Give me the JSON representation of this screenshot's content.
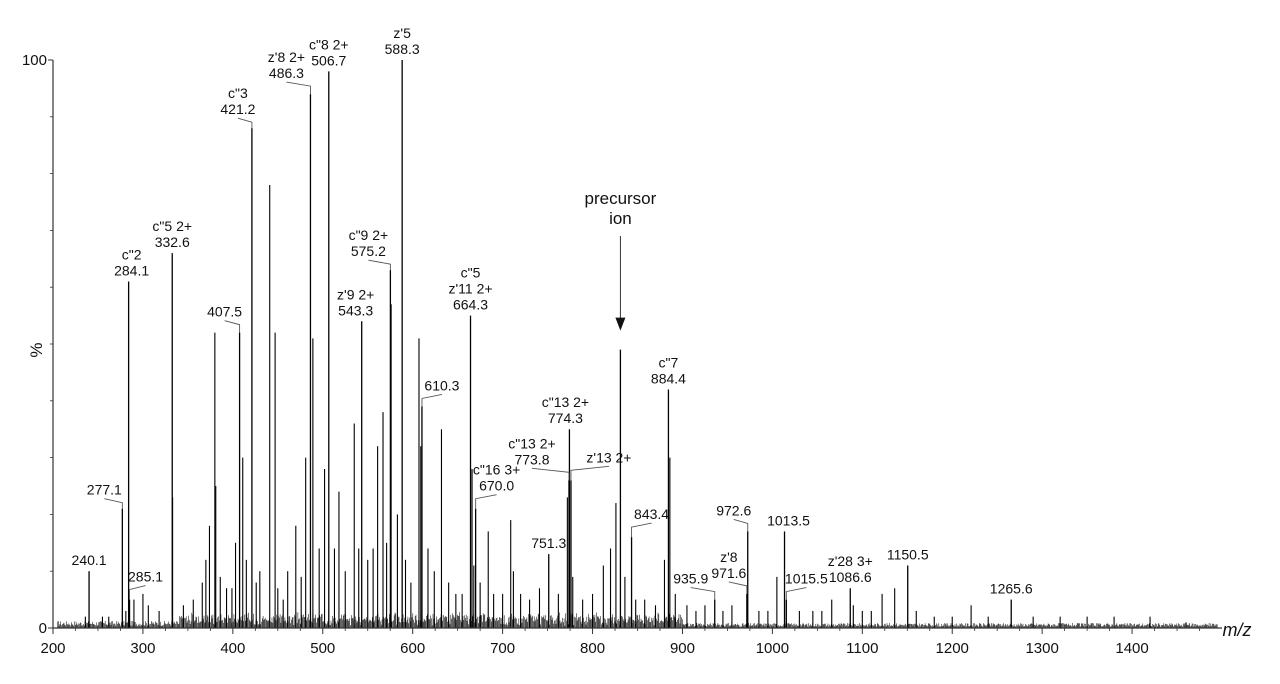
{
  "chart_data": {
    "type": "bar",
    "title": "",
    "xlabel": "m/z",
    "ylabel": "%",
    "xlim": [
      200,
      1500
    ],
    "ylim": [
      0,
      100
    ],
    "x_ticks": [
      "200",
      "300",
      "400",
      "500",
      "600",
      "700",
      "800",
      "900",
      "1000",
      "1100",
      "1200",
      "1300",
      "1400"
    ],
    "y_ticks": [
      "0",
      "100"
    ],
    "grid": false,
    "legend": "none",
    "colors": {
      "peak": "#000000",
      "axis": "#333333",
      "label_line": "#555555"
    },
    "labeled_peaks": [
      {
        "mz": 240.1,
        "intensity": 10,
        "label_lines": [
          "240.1"
        ]
      },
      {
        "mz": 277.1,
        "intensity": 21,
        "label_lines": [
          "277.1"
        ]
      },
      {
        "mz": 284.1,
        "intensity": 61,
        "label_lines": [
          "c\"2",
          "284.1"
        ]
      },
      {
        "mz": 285.1,
        "intensity": 5,
        "label_lines": [
          "285.1"
        ]
      },
      {
        "mz": 332.6,
        "intensity": 66,
        "label_lines": [
          "c\"5 2+",
          "332.6"
        ]
      },
      {
        "mz": 407.5,
        "intensity": 52,
        "label_lines": [
          "407.5"
        ]
      },
      {
        "mz": 421.2,
        "intensity": 88,
        "label_lines": [
          "c\"3",
          "421.2"
        ]
      },
      {
        "mz": 486.3,
        "intensity": 94,
        "label_lines": [
          "z'8 2+",
          "486.3"
        ]
      },
      {
        "mz": 506.7,
        "intensity": 98,
        "label_lines": [
          "c\"8 2+",
          "506.7"
        ]
      },
      {
        "mz": 543.3,
        "intensity": 54,
        "label_lines": [
          "z'9 2+",
          "543.3"
        ]
      },
      {
        "mz": 575.2,
        "intensity": 63,
        "label_lines": [
          "c\"9 2+",
          "575.2"
        ]
      },
      {
        "mz": 588.3,
        "intensity": 100,
        "label_lines": [
          "z'5",
          "588.3"
        ]
      },
      {
        "mz": 610.3,
        "intensity": 39,
        "label_lines": [
          "610.3"
        ]
      },
      {
        "mz": 664.3,
        "intensity": 55,
        "label_lines": [
          "c\"5",
          "z'11 2+",
          "664.3"
        ]
      },
      {
        "mz": 670.0,
        "intensity": 21,
        "label_lines": [
          "c\"16 3+",
          "670.0"
        ]
      },
      {
        "mz": 751.3,
        "intensity": 13,
        "label_lines": [
          "751.3"
        ]
      },
      {
        "mz": 773.8,
        "intensity": 26,
        "label_lines": [
          "c\"13 2+",
          "773.8"
        ]
      },
      {
        "mz": 774.3,
        "intensity": 35,
        "label_lines": [
          "c\"13 2+",
          "774.3"
        ]
      },
      {
        "mz": 776.0,
        "intensity": 26,
        "label_lines": [
          "z'13 2+"
        ]
      },
      {
        "mz": 831.0,
        "intensity": 49,
        "label_lines": []
      },
      {
        "mz": 843.4,
        "intensity": 16,
        "label_lines": [
          "843.4"
        ]
      },
      {
        "mz": 884.4,
        "intensity": 42,
        "label_lines": [
          "c\"7",
          "884.4"
        ]
      },
      {
        "mz": 935.9,
        "intensity": 5,
        "label_lines": [
          "935.9"
        ]
      },
      {
        "mz": 971.6,
        "intensity": 6,
        "label_lines": [
          "z'8",
          "971.6"
        ]
      },
      {
        "mz": 972.6,
        "intensity": 17,
        "label_lines": [
          "972.6"
        ]
      },
      {
        "mz": 1013.5,
        "intensity": 17,
        "label_lines": [
          "1013.5"
        ]
      },
      {
        "mz": 1015.5,
        "intensity": 5,
        "label_lines": [
          "1015.5"
        ]
      },
      {
        "mz": 1086.6,
        "intensity": 7,
        "label_lines": [
          "z'28 3+",
          "1086.6"
        ]
      },
      {
        "mz": 1150.5,
        "intensity": 11,
        "label_lines": [
          "1150.5"
        ]
      },
      {
        "mz": 1265.6,
        "intensity": 5,
        "label_lines": [
          "1265.6"
        ]
      }
    ],
    "minor_peaks": [
      {
        "mz": 236,
        "intensity": 2
      },
      {
        "mz": 255,
        "intensity": 2
      },
      {
        "mz": 262,
        "intensity": 2
      },
      {
        "mz": 281,
        "intensity": 3
      },
      {
        "mz": 290,
        "intensity": 5
      },
      {
        "mz": 300,
        "intensity": 6
      },
      {
        "mz": 306,
        "intensity": 4
      },
      {
        "mz": 318,
        "intensity": 3
      },
      {
        "mz": 333,
        "intensity": 23
      },
      {
        "mz": 345,
        "intensity": 4
      },
      {
        "mz": 356,
        "intensity": 5
      },
      {
        "mz": 366,
        "intensity": 8
      },
      {
        "mz": 370,
        "intensity": 12
      },
      {
        "mz": 374,
        "intensity": 18
      },
      {
        "mz": 380,
        "intensity": 52
      },
      {
        "mz": 381,
        "intensity": 25
      },
      {
        "mz": 386,
        "intensity": 9
      },
      {
        "mz": 393,
        "intensity": 7
      },
      {
        "mz": 399,
        "intensity": 7
      },
      {
        "mz": 403,
        "intensity": 15
      },
      {
        "mz": 411,
        "intensity": 30
      },
      {
        "mz": 415,
        "intensity": 12
      },
      {
        "mz": 426,
        "intensity": 8
      },
      {
        "mz": 430,
        "intensity": 10
      },
      {
        "mz": 441,
        "intensity": 78
      },
      {
        "mz": 447,
        "intensity": 52
      },
      {
        "mz": 450,
        "intensity": 7
      },
      {
        "mz": 456,
        "intensity": 5
      },
      {
        "mz": 461,
        "intensity": 10
      },
      {
        "mz": 470,
        "intensity": 18
      },
      {
        "mz": 476,
        "intensity": 9
      },
      {
        "mz": 481,
        "intensity": 30
      },
      {
        "mz": 489,
        "intensity": 51
      },
      {
        "mz": 496,
        "intensity": 14
      },
      {
        "mz": 502,
        "intensity": 28
      },
      {
        "mz": 513,
        "intensity": 14
      },
      {
        "mz": 518,
        "intensity": 24
      },
      {
        "mz": 525,
        "intensity": 10
      },
      {
        "mz": 535,
        "intensity": 36
      },
      {
        "mz": 540,
        "intensity": 14
      },
      {
        "mz": 550,
        "intensity": 12
      },
      {
        "mz": 556,
        "intensity": 14
      },
      {
        "mz": 561,
        "intensity": 32
      },
      {
        "mz": 567,
        "intensity": 38
      },
      {
        "mz": 571,
        "intensity": 15
      },
      {
        "mz": 576,
        "intensity": 57
      },
      {
        "mz": 583,
        "intensity": 20
      },
      {
        "mz": 592,
        "intensity": 12
      },
      {
        "mz": 598,
        "intensity": 8
      },
      {
        "mz": 607,
        "intensity": 51
      },
      {
        "mz": 609,
        "intensity": 32
      },
      {
        "mz": 617,
        "intensity": 14
      },
      {
        "mz": 624,
        "intensity": 10
      },
      {
        "mz": 632,
        "intensity": 35
      },
      {
        "mz": 640,
        "intensity": 8
      },
      {
        "mz": 648,
        "intensity": 6
      },
      {
        "mz": 655,
        "intensity": 6
      },
      {
        "mz": 666,
        "intensity": 28
      },
      {
        "mz": 668,
        "intensity": 11
      },
      {
        "mz": 675,
        "intensity": 8
      },
      {
        "mz": 684,
        "intensity": 17
      },
      {
        "mz": 690,
        "intensity": 6
      },
      {
        "mz": 700,
        "intensity": 6
      },
      {
        "mz": 709,
        "intensity": 19
      },
      {
        "mz": 712,
        "intensity": 10
      },
      {
        "mz": 720,
        "intensity": 6
      },
      {
        "mz": 730,
        "intensity": 5
      },
      {
        "mz": 741,
        "intensity": 7
      },
      {
        "mz": 762,
        "intensity": 6
      },
      {
        "mz": 772,
        "intensity": 23
      },
      {
        "mz": 778,
        "intensity": 9
      },
      {
        "mz": 789,
        "intensity": 5
      },
      {
        "mz": 800,
        "intensity": 6
      },
      {
        "mz": 812,
        "intensity": 11
      },
      {
        "mz": 820,
        "intensity": 14
      },
      {
        "mz": 826,
        "intensity": 22
      },
      {
        "mz": 836,
        "intensity": 9
      },
      {
        "mz": 848,
        "intensity": 5
      },
      {
        "mz": 858,
        "intensity": 5
      },
      {
        "mz": 870,
        "intensity": 4
      },
      {
        "mz": 880,
        "intensity": 12
      },
      {
        "mz": 886,
        "intensity": 30
      },
      {
        "mz": 892,
        "intensity": 6
      },
      {
        "mz": 905,
        "intensity": 4
      },
      {
        "mz": 915,
        "intensity": 3
      },
      {
        "mz": 925,
        "intensity": 4
      },
      {
        "mz": 945,
        "intensity": 3
      },
      {
        "mz": 955,
        "intensity": 4
      },
      {
        "mz": 985,
        "intensity": 3
      },
      {
        "mz": 995,
        "intensity": 3
      },
      {
        "mz": 1005,
        "intensity": 9
      },
      {
        "mz": 1030,
        "intensity": 3
      },
      {
        "mz": 1045,
        "intensity": 3
      },
      {
        "mz": 1055,
        "intensity": 3
      },
      {
        "mz": 1066,
        "intensity": 5
      },
      {
        "mz": 1090,
        "intensity": 4
      },
      {
        "mz": 1100,
        "intensity": 3
      },
      {
        "mz": 1110,
        "intensity": 3
      },
      {
        "mz": 1122,
        "intensity": 6
      },
      {
        "mz": 1136,
        "intensity": 7
      },
      {
        "mz": 1160,
        "intensity": 3
      },
      {
        "mz": 1180,
        "intensity": 2
      },
      {
        "mz": 1200,
        "intensity": 2
      },
      {
        "mz": 1221,
        "intensity": 4
      },
      {
        "mz": 1240,
        "intensity": 2
      },
      {
        "mz": 1290,
        "intensity": 2
      },
      {
        "mz": 1320,
        "intensity": 2
      },
      {
        "mz": 1350,
        "intensity": 2
      },
      {
        "mz": 1380,
        "intensity": 2
      },
      {
        "mz": 1420,
        "intensity": 2
      },
      {
        "mz": 1460,
        "intensity": 1
      }
    ],
    "annotations": [
      {
        "text_lines": [
          "precursor",
          "ion"
        ],
        "points_to_mz": 831.0
      }
    ]
  }
}
